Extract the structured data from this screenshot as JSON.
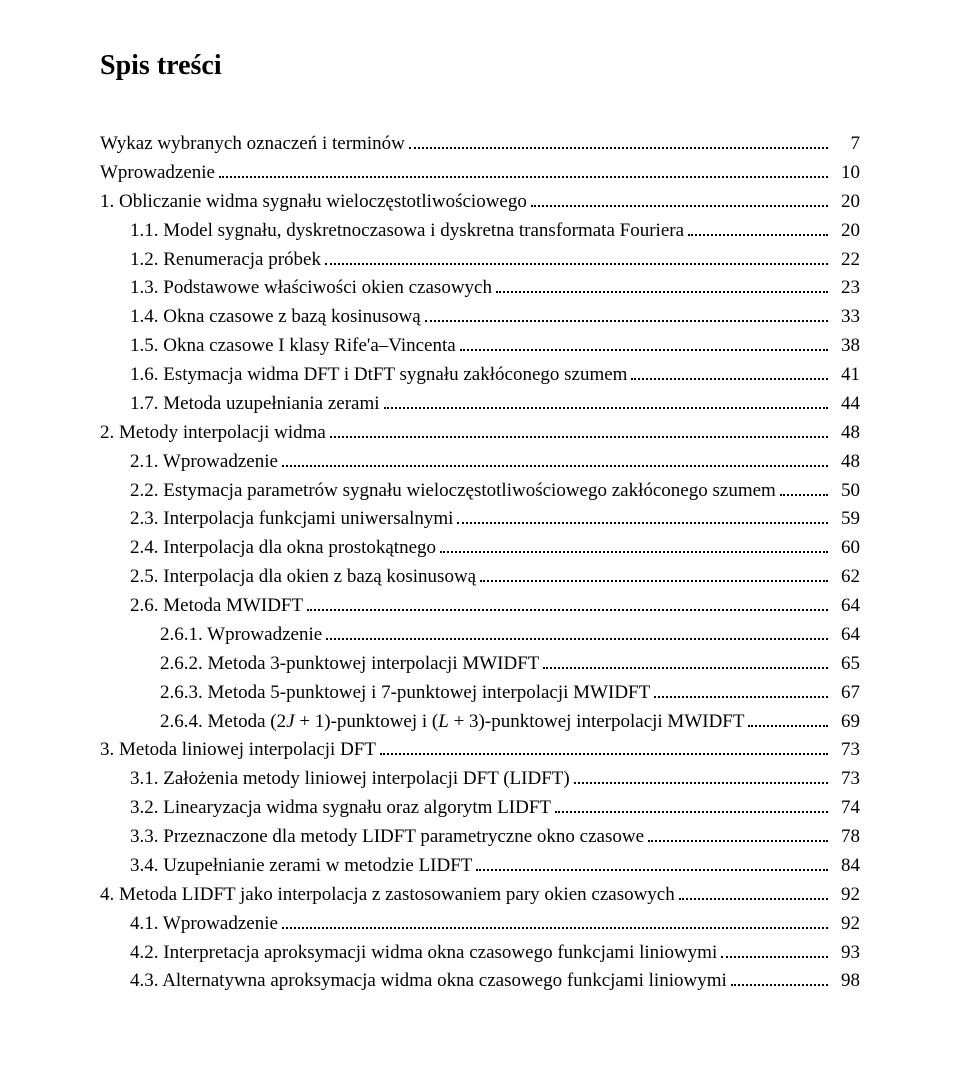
{
  "title": "Spis treści",
  "entries": [
    {
      "label": "Wykaz wybranych oznaczeń i terminów",
      "page": "7",
      "indent": 0
    },
    {
      "label": "Wprowadzenie",
      "page": "10",
      "indent": 0
    },
    {
      "label": "1. Obliczanie widma sygnału wieloczęstotliwościowego",
      "page": "20",
      "indent": 0
    },
    {
      "label": "1.1. Model sygnału, dyskretnoczasowa i dyskretna transformata Fouriera",
      "page": "20",
      "indent": 1
    },
    {
      "label": "1.2. Renumeracja próbek",
      "page": "22",
      "indent": 1
    },
    {
      "label": "1.3. Podstawowe właściwości okien czasowych",
      "page": "23",
      "indent": 1
    },
    {
      "label": "1.4. Okna czasowe z bazą kosinusową",
      "page": "33",
      "indent": 1
    },
    {
      "label": "1.5. Okna czasowe I klasy Rife'a–Vincenta",
      "page": "38",
      "indent": 1
    },
    {
      "label": "1.6. Estymacja widma DFT i DtFT sygnału zakłóconego szumem",
      "page": "41",
      "indent": 1
    },
    {
      "label": "1.7. Metoda uzupełniania zerami",
      "page": "44",
      "indent": 1
    },
    {
      "label": "2. Metody interpolacji widma",
      "page": "48",
      "indent": 0
    },
    {
      "label": "2.1. Wprowadzenie",
      "page": "48",
      "indent": 1
    },
    {
      "label": "2.2. Estymacja parametrów sygnału wieloczęstotliwościowego zakłóconego szumem",
      "page": "50",
      "indent": 1
    },
    {
      "label": "2.3. Interpolacja funkcjami uniwersalnymi",
      "page": "59",
      "indent": 1
    },
    {
      "label": "2.4. Interpolacja dla okna prostokątnego",
      "page": "60",
      "indent": 1
    },
    {
      "label": "2.5. Interpolacja dla okien z bazą kosinusową",
      "page": "62",
      "indent": 1
    },
    {
      "label": "2.6. Metoda MWIDFT",
      "page": "64",
      "indent": 1
    },
    {
      "label": "2.6.1. Wprowadzenie",
      "page": "64",
      "indent": 2
    },
    {
      "label": "2.6.2. Metoda 3-punktowej interpolacji MWIDFT",
      "page": "65",
      "indent": 2
    },
    {
      "label": "2.6.3. Metoda 5-punktowej i 7-punktowej interpolacji MWIDFT",
      "page": "67",
      "indent": 2
    },
    {
      "label_html": "2.6.4. Metoda (2<span class='italic'>J</span> + 1)-punktowej i (<span class='italic'>L</span> + 3)-punktowej interpolacji MWIDFT",
      "page": "69",
      "indent": 2
    },
    {
      "label": "3. Metoda liniowej interpolacji DFT",
      "page": "73",
      "indent": 0
    },
    {
      "label": "3.1. Założenia metody liniowej interpolacji DFT (LIDFT)",
      "page": "73",
      "indent": 1
    },
    {
      "label": "3.2. Linearyzacja widma sygnału oraz algorytm LIDFT",
      "page": "74",
      "indent": 1
    },
    {
      "label": "3.3. Przeznaczone dla metody LIDFT parametryczne okno czasowe",
      "page": "78",
      "indent": 1
    },
    {
      "label": "3.4. Uzupełnianie zerami w metodzie LIDFT",
      "page": "84",
      "indent": 1
    },
    {
      "label": "4. Metoda LIDFT jako interpolacja z zastosowaniem pary okien czasowych",
      "page": "92",
      "indent": 0
    },
    {
      "label": "4.1. Wprowadzenie",
      "page": "92",
      "indent": 1
    },
    {
      "label": "4.2. Interpretacja aproksymacji widma okna czasowego funkcjami liniowymi",
      "page": "93",
      "indent": 1
    },
    {
      "label": "4.3. Alternatywna aproksymacja widma okna czasowego funkcjami liniowymi",
      "page": "98",
      "indent": 1
    }
  ]
}
